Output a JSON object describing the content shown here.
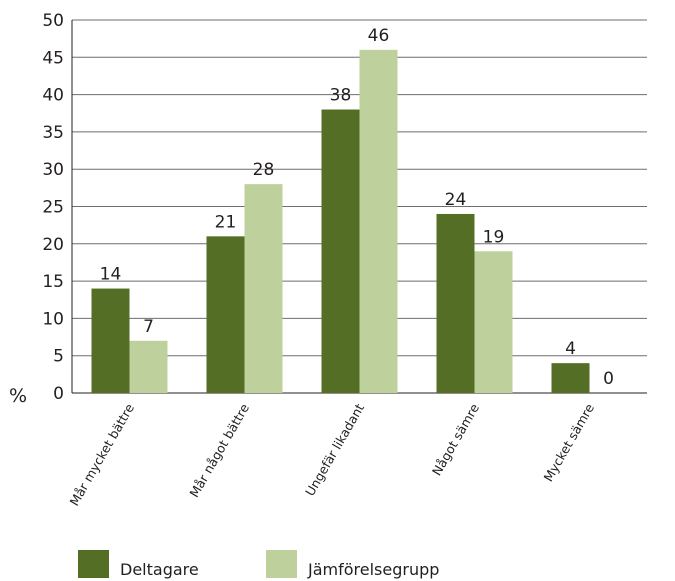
{
  "chart_data": {
    "type": "bar",
    "title": "",
    "xlabel": "",
    "ylabel": "%",
    "ylim": [
      0,
      50
    ],
    "yticks": [
      0,
      5,
      10,
      15,
      20,
      25,
      30,
      35,
      40,
      45,
      50
    ],
    "grid": true,
    "legend_position": "bottom-left",
    "categories": [
      "Mår mycket bättre",
      "Mår något bättre",
      "Ungefär likadant",
      "Något sämre",
      "Mycket sämre"
    ],
    "series": [
      {
        "name": "Deltagare",
        "color": "#546e25",
        "values": [
          14,
          21,
          38,
          24,
          4
        ]
      },
      {
        "name": "Jämförelsegrupp",
        "color": "#bed09b",
        "values": [
          7,
          28,
          46,
          19,
          0
        ]
      }
    ]
  }
}
